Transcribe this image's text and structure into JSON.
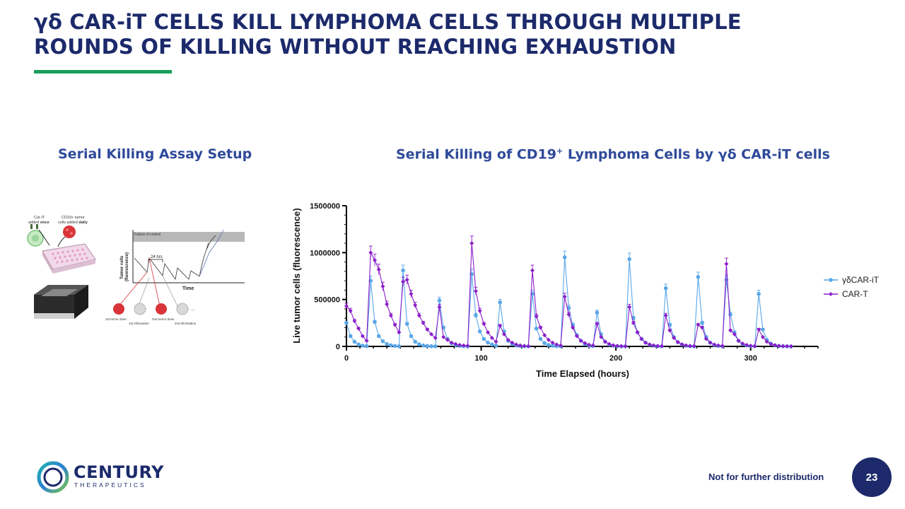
{
  "slide": {
    "title_line1": "γδ CAR-iT CELLS KILL LYMPHOMA CELLS THROUGH MULTIPLE",
    "title_line2": "ROUNDS OF KILLING WITHOUT REACHING EXHAUSTION",
    "left_heading": "Serial Killing Assay Setup",
    "right_heading_pre": "Serial Killing of CD19",
    "right_heading_sup": "+",
    "right_heading_post": " Lymphoma Cells by γδ CAR-iT cells",
    "footer_note": "Not for further distribution",
    "page_number": "23",
    "logo_name": "CENTURY",
    "logo_sub": "THERAPEUTICS"
  },
  "schematic": {
    "label_car": "Car-iT",
    "label_added_once_pre": "added ",
    "label_added_once_bold": "once",
    "label_cd19": "CD19+ tumor",
    "label_cells_daily_pre": "cells added ",
    "label_cells_daily_bold": "daily",
    "failure_label": "Failure of control",
    "interval_label": "24 hrs",
    "y_label_1": "Tumor cells",
    "y_label_2": "(fluorescence)",
    "x_label": "Time",
    "dose1": "1st tumor dose",
    "elim1": "1st elimination",
    "dose2": "2nd tumor dose",
    "elim2": "2nd elimination",
    "ellipsis": "..."
  },
  "chart_data": {
    "type": "line",
    "xlabel": "Time Elapsed (hours)",
    "ylabel": "Live tumor cells (fluorescence)",
    "xlim": [
      0,
      350
    ],
    "ylim": [
      0,
      1500000
    ],
    "x_ticks": [
      0,
      100,
      200,
      300
    ],
    "y_ticks": [
      0,
      500000,
      1000000,
      1500000
    ],
    "legend_position": "right",
    "series": [
      {
        "name": "γδCAR-iT",
        "color": "#5aa7e8",
        "points": [
          [
            0,
            250000
          ],
          [
            3,
            110000
          ],
          [
            6,
            50000
          ],
          [
            9,
            20000
          ],
          [
            12,
            8000
          ],
          [
            15,
            3000
          ],
          [
            18,
            700000
          ],
          [
            21,
            260000
          ],
          [
            24,
            110000
          ],
          [
            27,
            55000
          ],
          [
            30,
            25000
          ],
          [
            33,
            12000
          ],
          [
            36,
            5000
          ],
          [
            39,
            2000
          ],
          [
            42,
            810000
          ],
          [
            45,
            240000
          ],
          [
            48,
            110000
          ],
          [
            51,
            50000
          ],
          [
            54,
            22000
          ],
          [
            57,
            10000
          ],
          [
            60,
            5000
          ],
          [
            63,
            2000
          ],
          [
            66,
            1000
          ],
          [
            69,
            490000
          ],
          [
            72,
            200000
          ],
          [
            75,
            80000
          ],
          [
            78,
            35000
          ],
          [
            81,
            15000
          ],
          [
            84,
            6000
          ],
          [
            87,
            3000
          ],
          [
            90,
            1500
          ],
          [
            93,
            770000
          ],
          [
            96,
            330000
          ],
          [
            99,
            160000
          ],
          [
            102,
            80000
          ],
          [
            105,
            40000
          ],
          [
            108,
            20000
          ],
          [
            111,
            8000
          ],
          [
            114,
            470000
          ],
          [
            117,
            160000
          ],
          [
            120,
            60000
          ],
          [
            123,
            25000
          ],
          [
            126,
            10000
          ],
          [
            129,
            5000
          ],
          [
            132,
            2000
          ],
          [
            135,
            1000
          ],
          [
            138,
            560000
          ],
          [
            141,
            190000
          ],
          [
            144,
            80000
          ],
          [
            147,
            35000
          ],
          [
            150,
            15000
          ],
          [
            153,
            7000
          ],
          [
            156,
            3000
          ],
          [
            159,
            1000
          ],
          [
            162,
            950000
          ],
          [
            165,
            410000
          ],
          [
            168,
            230000
          ],
          [
            171,
            120000
          ],
          [
            174,
            60000
          ],
          [
            177,
            25000
          ],
          [
            180,
            10000
          ],
          [
            183,
            5000
          ],
          [
            186,
            360000
          ],
          [
            189,
            130000
          ],
          [
            192,
            50000
          ],
          [
            195,
            20000
          ],
          [
            198,
            8000
          ],
          [
            201,
            3000
          ],
          [
            204,
            1000
          ],
          [
            207,
            500
          ],
          [
            210,
            930000
          ],
          [
            213,
            300000
          ],
          [
            216,
            150000
          ],
          [
            219,
            80000
          ],
          [
            222,
            40000
          ],
          [
            225,
            18000
          ],
          [
            228,
            8000
          ],
          [
            231,
            3000
          ],
          [
            234,
            1000
          ],
          [
            237,
            620000
          ],
          [
            240,
            230000
          ],
          [
            243,
            100000
          ],
          [
            246,
            45000
          ],
          [
            249,
            20000
          ],
          [
            252,
            8000
          ],
          [
            255,
            3000
          ],
          [
            258,
            1000
          ],
          [
            261,
            740000
          ],
          [
            264,
            250000
          ],
          [
            267,
            100000
          ],
          [
            270,
            40000
          ],
          [
            273,
            15000
          ],
          [
            276,
            6000
          ],
          [
            279,
            2000
          ],
          [
            282,
            710000
          ],
          [
            285,
            340000
          ],
          [
            288,
            150000
          ],
          [
            291,
            60000
          ],
          [
            294,
            25000
          ],
          [
            297,
            10000
          ],
          [
            300,
            4000
          ],
          [
            303,
            1500
          ],
          [
            306,
            560000
          ],
          [
            309,
            180000
          ],
          [
            312,
            70000
          ],
          [
            315,
            30000
          ],
          [
            318,
            12000
          ],
          [
            321,
            5000
          ],
          [
            324,
            2000
          ],
          [
            327,
            1000
          ],
          [
            330,
            500
          ]
        ]
      },
      {
        "name": "CAR-T",
        "color": "#8b1fc9",
        "points": [
          [
            0,
            430000
          ],
          [
            3,
            380000
          ],
          [
            6,
            270000
          ],
          [
            9,
            190000
          ],
          [
            12,
            110000
          ],
          [
            15,
            60000
          ],
          [
            18,
            1000000
          ],
          [
            21,
            920000
          ],
          [
            24,
            820000
          ],
          [
            27,
            640000
          ],
          [
            30,
            450000
          ],
          [
            33,
            330000
          ],
          [
            36,
            230000
          ],
          [
            39,
            150000
          ],
          [
            42,
            690000
          ],
          [
            45,
            710000
          ],
          [
            48,
            560000
          ],
          [
            51,
            440000
          ],
          [
            54,
            330000
          ],
          [
            57,
            250000
          ],
          [
            60,
            180000
          ],
          [
            63,
            130000
          ],
          [
            66,
            90000
          ],
          [
            69,
            420000
          ],
          [
            72,
            100000
          ],
          [
            75,
            70000
          ],
          [
            78,
            40000
          ],
          [
            81,
            25000
          ],
          [
            84,
            15000
          ],
          [
            87,
            10000
          ],
          [
            90,
            8000
          ],
          [
            93,
            1100000
          ],
          [
            96,
            590000
          ],
          [
            99,
            380000
          ],
          [
            102,
            240000
          ],
          [
            105,
            150000
          ],
          [
            108,
            90000
          ],
          [
            111,
            50000
          ],
          [
            114,
            220000
          ],
          [
            117,
            130000
          ],
          [
            120,
            70000
          ],
          [
            123,
            40000
          ],
          [
            126,
            20000
          ],
          [
            129,
            10000
          ],
          [
            132,
            5000
          ],
          [
            135,
            2000
          ],
          [
            138,
            810000
          ],
          [
            141,
            320000
          ],
          [
            144,
            200000
          ],
          [
            147,
            120000
          ],
          [
            150,
            70000
          ],
          [
            153,
            40000
          ],
          [
            156,
            20000
          ],
          [
            159,
            10000
          ],
          [
            162,
            530000
          ],
          [
            165,
            340000
          ],
          [
            168,
            200000
          ],
          [
            171,
            110000
          ],
          [
            174,
            60000
          ],
          [
            177,
            35000
          ],
          [
            180,
            18000
          ],
          [
            183,
            10000
          ],
          [
            186,
            240000
          ],
          [
            189,
            100000
          ],
          [
            192,
            50000
          ],
          [
            195,
            25000
          ],
          [
            198,
            12000
          ],
          [
            201,
            6000
          ],
          [
            204,
            3000
          ],
          [
            207,
            1500
          ],
          [
            210,
            420000
          ],
          [
            213,
            250000
          ],
          [
            216,
            150000
          ],
          [
            219,
            80000
          ],
          [
            222,
            40000
          ],
          [
            225,
            20000
          ],
          [
            228,
            10000
          ],
          [
            231,
            5000
          ],
          [
            234,
            2500
          ],
          [
            237,
            330000
          ],
          [
            240,
            170000
          ],
          [
            243,
            90000
          ],
          [
            246,
            45000
          ],
          [
            249,
            22000
          ],
          [
            252,
            10000
          ],
          [
            255,
            5000
          ],
          [
            258,
            2500
          ],
          [
            261,
            230000
          ],
          [
            264,
            200000
          ],
          [
            267,
            80000
          ],
          [
            270,
            40000
          ],
          [
            273,
            20000
          ],
          [
            276,
            10000
          ],
          [
            279,
            5000
          ],
          [
            282,
            880000
          ],
          [
            285,
            170000
          ],
          [
            288,
            130000
          ],
          [
            291,
            60000
          ],
          [
            294,
            30000
          ],
          [
            297,
            15000
          ],
          [
            300,
            7000
          ],
          [
            303,
            3000
          ],
          [
            306,
            180000
          ],
          [
            309,
            100000
          ],
          [
            312,
            50000
          ],
          [
            315,
            25000
          ],
          [
            318,
            12000
          ],
          [
            321,
            6000
          ],
          [
            324,
            3000
          ],
          [
            327,
            1500
          ],
          [
            330,
            700
          ]
        ]
      }
    ]
  },
  "colors": {
    "title": "#1c2a6b",
    "heading": "#2f4a9a",
    "accent_rule": "#1a9e5b"
  }
}
